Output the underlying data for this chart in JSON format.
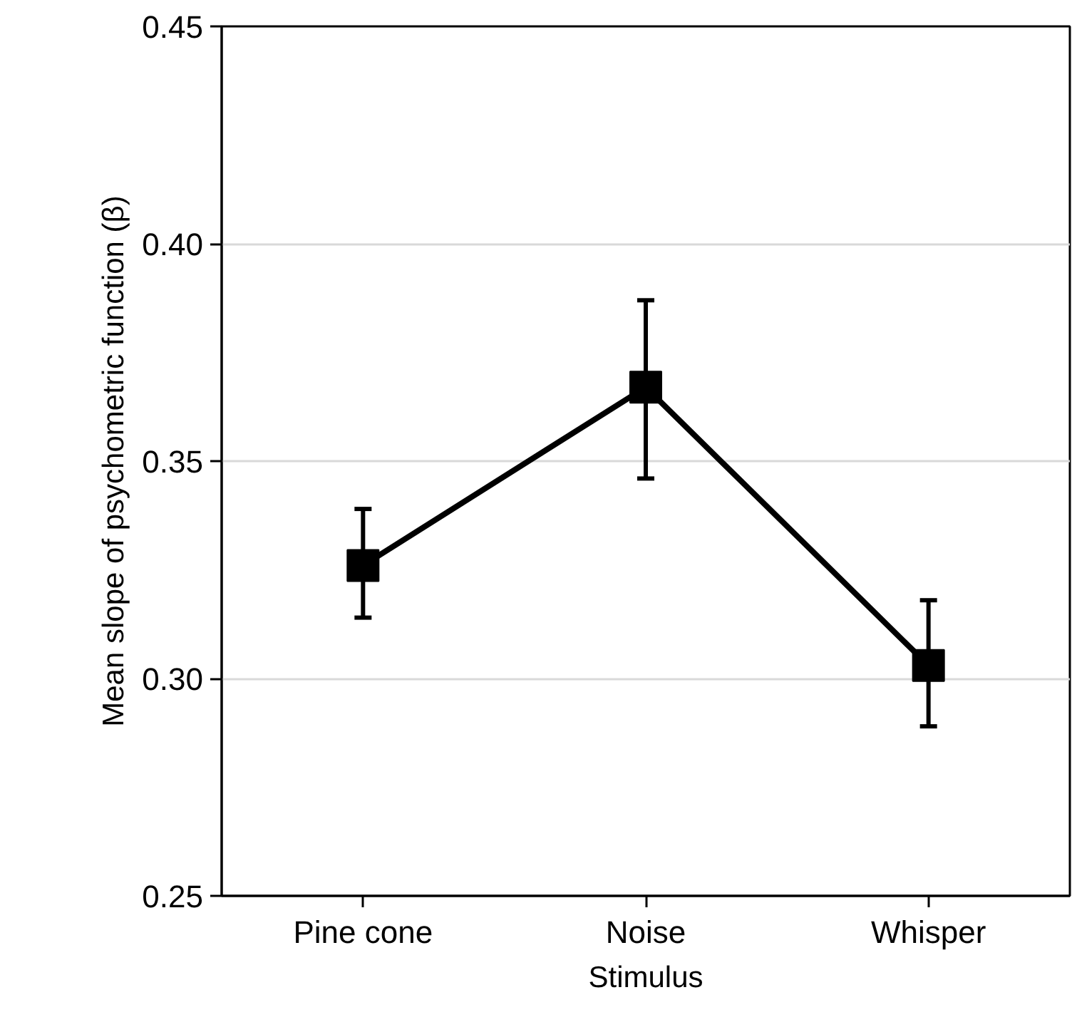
{
  "chart_data": {
    "type": "line",
    "xlabel": "Stimulus",
    "ylabel": "Mean slope of psychometric function (β)",
    "categories": [
      "Pine cone",
      "Noise",
      "Whisper"
    ],
    "series": [
      {
        "color": "#000000",
        "values": [
          0.326,
          0.367,
          0.303
        ],
        "errors": [
          [
            0.314,
            0.339
          ],
          [
            0.346,
            0.387
          ],
          [
            0.289,
            0.318
          ]
        ]
      }
    ],
    "ylim": [
      0.25,
      0.45
    ],
    "yticks": [
      0.25,
      {
        "value": 0.3,
        "label": "0.30"
      },
      0.35,
      {
        "value": 0.4,
        "label": "0.40"
      },
      0.45
    ],
    "grid": "y",
    "marker": "square",
    "line_style": "solid"
  }
}
